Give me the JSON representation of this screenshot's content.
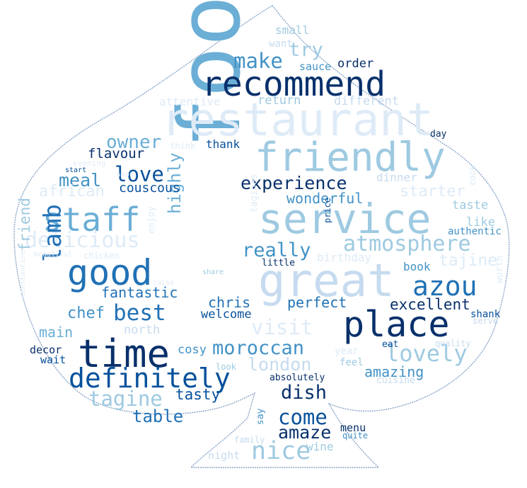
{
  "colors": {
    "background": "#ffffff",
    "outline": "#8ba6c9",
    "palette": [
      "#08306b",
      "#08519c",
      "#2171b5",
      "#4292c6",
      "#6baed6",
      "#9ecae1",
      "#c6dbef",
      "#deebf7"
    ]
  },
  "words": [
    {
      "text": "food",
      "color": "#6baed6"
    },
    {
      "text": "restaurant",
      "color": "#deebf7"
    },
    {
      "text": "recommend",
      "color": "#08306b"
    },
    {
      "text": "friendly",
      "color": "#9ecae1"
    },
    {
      "text": "service",
      "color": "#9ecae1"
    },
    {
      "text": "great",
      "color": "#c6dbef"
    },
    {
      "text": "place",
      "color": "#08306b"
    },
    {
      "text": "staff",
      "color": "#6baed6"
    },
    {
      "text": "good",
      "color": "#2171b5"
    },
    {
      "text": "time",
      "color": "#08306b"
    },
    {
      "text": "definitely",
      "color": "#08519c"
    },
    {
      "text": "azou",
      "color": "#2171b5"
    },
    {
      "text": "lovely",
      "color": "#9ecae1"
    },
    {
      "text": "atmosphere",
      "color": "#9ecae1"
    },
    {
      "text": "experience",
      "color": "#08306b"
    },
    {
      "text": "delicious",
      "color": "#deebf7"
    },
    {
      "text": "love",
      "color": "#08519c"
    },
    {
      "text": "make",
      "color": "#4292c6"
    },
    {
      "text": "try",
      "color": "#9ecae1"
    },
    {
      "text": "owner",
      "color": "#6baed6"
    },
    {
      "text": "meal",
      "color": "#4292c6"
    },
    {
      "text": "lamb",
      "color": "#2171b5"
    },
    {
      "text": "best",
      "color": "#2171b5"
    },
    {
      "text": "highly",
      "color": "#6baed6"
    },
    {
      "text": "really",
      "color": "#4292c6"
    },
    {
      "text": "moroccan",
      "color": "#4292c6"
    },
    {
      "text": "tagine",
      "color": "#9ecae1"
    },
    {
      "text": "dish",
      "color": "#08306b"
    },
    {
      "text": "come",
      "color": "#08519c"
    },
    {
      "text": "amaze",
      "color": "#08306b"
    },
    {
      "text": "nice",
      "color": "#9ecae1"
    },
    {
      "text": "visit",
      "color": "#deebf7"
    },
    {
      "text": "london",
      "color": "#c6dbef"
    },
    {
      "text": "excellent",
      "color": "#08306b"
    },
    {
      "text": "tajine",
      "color": "#deebf7"
    },
    {
      "text": "friend",
      "color": "#9ecae1"
    },
    {
      "text": "starter",
      "color": "#deebf7"
    },
    {
      "text": "african",
      "color": "#deebf7"
    },
    {
      "text": "couscous",
      "color": "#08519c"
    },
    {
      "text": "fantastic",
      "color": "#2171b5"
    },
    {
      "text": "chris",
      "color": "#2171b5"
    },
    {
      "text": "perfect",
      "color": "#2171b5"
    },
    {
      "text": "welcome",
      "color": "#08519c"
    },
    {
      "text": "chef",
      "color": "#4292c6"
    },
    {
      "text": "main",
      "color": "#6baed6"
    },
    {
      "text": "north",
      "color": "#c6dbef"
    },
    {
      "text": "cosy",
      "color": "#4292c6"
    },
    {
      "text": "tasty",
      "color": "#08519c"
    },
    {
      "text": "table",
      "color": "#2171b5"
    },
    {
      "text": "amazing",
      "color": "#4292c6"
    },
    {
      "text": "wonderful",
      "color": "#4292c6"
    },
    {
      "text": "flavour",
      "color": "#08306b"
    },
    {
      "text": "thank",
      "color": "#08519c"
    },
    {
      "text": "return",
      "color": "#9ecae1"
    },
    {
      "text": "different",
      "color": "#c6dbef"
    },
    {
      "text": "attentive",
      "color": "#deebf7"
    },
    {
      "text": "small",
      "color": "#9ecae1"
    },
    {
      "text": "want",
      "color": "#c6dbef"
    },
    {
      "text": "sauce",
      "color": "#4292c6"
    },
    {
      "text": "order",
      "color": "#08306b"
    },
    {
      "text": "dinner",
      "color": "#c6dbef"
    },
    {
      "text": "taste",
      "color": "#9ecae1"
    },
    {
      "text": "like",
      "color": "#9ecae1"
    },
    {
      "text": "authentic",
      "color": "#4292c6"
    },
    {
      "text": "book",
      "color": "#4292c6"
    },
    {
      "text": "birthday",
      "color": "#deebf7"
    },
    {
      "text": "little",
      "color": "#08306b"
    },
    {
      "text": "price",
      "color": "#08519c"
    },
    {
      "text": "tagines",
      "color": "#deebf7"
    },
    {
      "text": "shank",
      "color": "#08519c"
    },
    {
      "text": "serve",
      "color": "#c6dbef"
    },
    {
      "text": "worth",
      "color": "#deebf7"
    },
    {
      "text": "eat",
      "color": "#08519c"
    },
    {
      "text": "quality",
      "color": "#c6dbef"
    },
    {
      "text": "year",
      "color": "#deebf7"
    },
    {
      "text": "feel",
      "color": "#9ecae1"
    },
    {
      "text": "cuisine",
      "color": "#c6dbef"
    },
    {
      "text": "absolutely",
      "color": "#08306b"
    },
    {
      "text": "decor",
      "color": "#08306b"
    },
    {
      "text": "wait",
      "color": "#08519c"
    },
    {
      "text": "look",
      "color": "#9ecae1"
    },
    {
      "text": "say",
      "color": "#4292c6"
    },
    {
      "text": "menu",
      "color": "#08306b"
    },
    {
      "text": "quite",
      "color": "#4292c6"
    },
    {
      "text": "wine",
      "color": "#9ecae1"
    },
    {
      "text": "night",
      "color": "#c6dbef"
    },
    {
      "text": "family",
      "color": "#c6dbef"
    },
    {
      "text": "day",
      "color": "#08306b"
    },
    {
      "text": "cook",
      "color": "#deebf7"
    },
    {
      "text": "enjoy",
      "color": "#deebf7"
    },
    {
      "text": "think",
      "color": "#deebf7"
    },
    {
      "text": "evening",
      "color": "#deebf7"
    },
    {
      "text": "start",
      "color": "#08519c"
    },
    {
      "text": "soon",
      "color": "#deebf7"
    },
    {
      "text": "chicken",
      "color": "#deebf7"
    },
    {
      "text": "beautiful",
      "color": "#deebf7"
    },
    {
      "text": "share",
      "color": "#9ecae1"
    },
    {
      "text": "constantine",
      "color": "#deebf7"
    },
    {
      "text": "raise",
      "color": "#deebf7"
    }
  ]
}
